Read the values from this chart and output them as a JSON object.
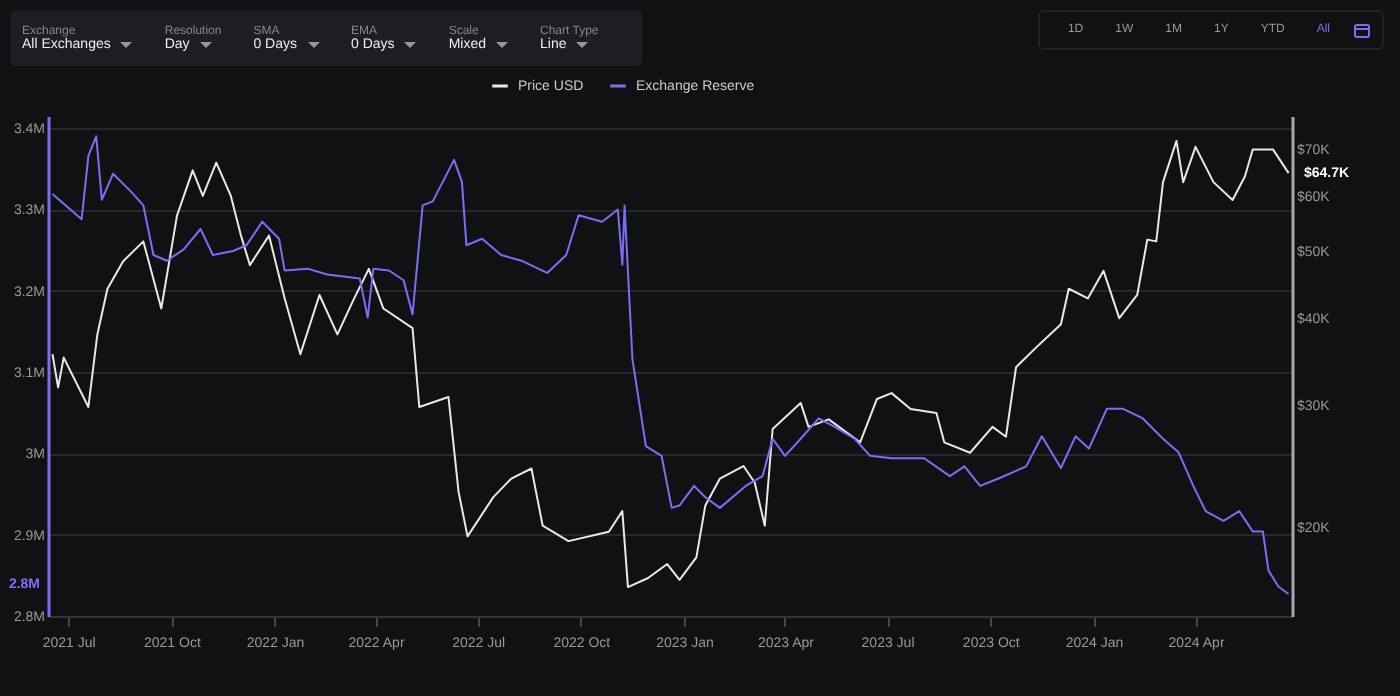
{
  "chart_data": {
    "type": "line",
    "annotations": [
      "Exchange",
      "All Exchanges",
      "Resolution",
      "Day",
      "SMA",
      "0 Days",
      "EMA",
      "0 Days",
      "Scale",
      "Mixed",
      "Chart Type",
      "Line",
      "1D",
      "1W",
      "1M",
      "1Y",
      "YTD",
      "All",
      "$64.7K",
      "2.8M"
    ],
    "series": [
      {
        "name": "Price USD",
        "color": "#e8e8e8",
        "axis": "y2",
        "x": [
          "2021-06-17",
          "2021-06-22",
          "2021-06-27",
          "2021-07-19",
          "2021-07-27",
          "2021-08-05",
          "2021-08-19",
          "2021-09-06",
          "2021-09-22",
          "2021-10-06",
          "2021-10-20",
          "2021-10-29",
          "2021-11-10",
          "2021-11-23",
          "2021-12-02",
          "2021-12-10",
          "2021-12-27",
          "2022-01-10",
          "2022-01-24",
          "2022-02-10",
          "2022-02-26",
          "2022-03-12",
          "2022-03-26",
          "2022-04-08",
          "2022-05-04",
          "2022-05-10",
          "2022-06-05",
          "2022-06-14",
          "2022-06-22",
          "2022-07-15",
          "2022-07-31",
          "2022-08-18",
          "2022-08-28",
          "2022-09-20",
          "2022-10-26",
          "2022-11-07",
          "2022-11-12",
          "2022-11-30",
          "2022-12-17",
          "2022-12-28",
          "2023-01-12",
          "2023-01-20",
          "2023-02-02",
          "2023-02-23",
          "2023-03-05",
          "2023-03-14",
          "2023-03-21",
          "2023-04-15",
          "2023-04-22",
          "2023-05-10",
          "2023-06-07",
          "2023-06-22",
          "2023-07-05",
          "2023-07-22",
          "2023-08-14",
          "2023-08-21",
          "2023-09-13",
          "2023-10-03",
          "2023-10-15",
          "2023-10-24",
          "2023-11-14",
          "2023-12-03",
          "2023-12-10",
          "2023-12-27",
          "2024-01-10",
          "2024-01-24",
          "2024-02-09",
          "2024-02-18",
          "2024-02-26",
          "2024-03-03",
          "2024-03-15",
          "2024-03-21",
          "2024-04-01",
          "2024-04-17",
          "2024-05-04",
          "2024-05-15",
          "2024-05-22",
          "2024-06-09",
          "2024-06-23"
        ],
        "values": [
          35500,
          31800,
          35100,
          29800,
          37900,
          44100,
          48300,
          51600,
          41300,
          56200,
          65300,
          60000,
          67000,
          60000,
          52600,
          47700,
          52600,
          42700,
          35500,
          43200,
          37900,
          42400,
          47100,
          41300,
          38700,
          29800,
          30800,
          22500,
          19400,
          22100,
          23500,
          24300,
          20100,
          19100,
          19700,
          21100,
          16400,
          16900,
          17700,
          16800,
          18100,
          21500,
          23500,
          24500,
          23200,
          20100,
          27700,
          30200,
          27900,
          28600,
          26500,
          30600,
          31200,
          29600,
          29200,
          26500,
          25600,
          27900,
          27000,
          34000,
          36700,
          39200,
          44100,
          42700,
          46800,
          40000,
          43200,
          51900,
          51600,
          62800,
          72000,
          62800,
          70600,
          62800,
          59200,
          64000,
          70000,
          70000,
          64700
        ]
      },
      {
        "name": "Exchange Reserve",
        "color": "#7b6ef6",
        "x": [
          "2021-06-17",
          "2021-07-13",
          "2021-07-19",
          "2021-07-26",
          "2021-07-31",
          "2021-08-10",
          "2021-08-26",
          "2021-09-06",
          "2021-09-15",
          "2021-09-27",
          "2021-10-12",
          "2021-10-27",
          "2021-11-07",
          "2021-11-25",
          "2021-12-07",
          "2021-12-21",
          "2022-01-05",
          "2022-01-10",
          "2022-01-31",
          "2022-02-17",
          "2022-03-18",
          "2022-03-25",
          "2022-03-30",
          "2022-04-13",
          "2022-04-26",
          "2022-05-04",
          "2022-05-13",
          "2022-05-22",
          "2022-06-10",
          "2022-06-17",
          "2022-06-21",
          "2022-07-05",
          "2022-07-22",
          "2022-08-09",
          "2022-09-01",
          "2022-09-18",
          "2022-09-29",
          "2022-10-20",
          "2022-11-03",
          "2022-11-07",
          "2022-11-09",
          "2022-11-16",
          "2022-11-28",
          "2022-12-12",
          "2022-12-21",
          "2022-12-28",
          "2023-01-10",
          "2023-01-20",
          "2023-02-02",
          "2023-02-25",
          "2023-03-12",
          "2023-03-21",
          "2023-04-01",
          "2023-04-15",
          "2023-05-01",
          "2023-05-15",
          "2023-06-02",
          "2023-06-16",
          "2023-07-05",
          "2023-08-03",
          "2023-08-26",
          "2023-09-08",
          "2023-09-22",
          "2023-10-10",
          "2023-11-02",
          "2023-11-16",
          "2023-12-03",
          "2023-12-16",
          "2023-12-28",
          "2024-01-13",
          "2024-01-27",
          "2024-02-14",
          "2024-03-03",
          "2024-03-17",
          "2024-03-30",
          "2024-04-10",
          "2024-04-26",
          "2024-05-10",
          "2024-05-22",
          "2024-05-31",
          "2024-06-05",
          "2024-06-14",
          "2024-06-23"
        ],
        "values": [
          3319000,
          3288000,
          3366000,
          3390000,
          3312000,
          3344000,
          3322000,
          3305000,
          3244000,
          3237000,
          3251000,
          3276000,
          3244000,
          3249000,
          3256000,
          3285000,
          3264000,
          3225000,
          3227000,
          3220000,
          3215000,
          3167000,
          3227000,
          3225000,
          3213000,
          3171000,
          3305000,
          3310000,
          3361000,
          3334000,
          3256000,
          3264000,
          3244000,
          3237000,
          3222000,
          3244000,
          3293000,
          3285000,
          3300000,
          3232000,
          3305000,
          3116000,
          3009000,
          2997000,
          2933000,
          2936000,
          2960000,
          2946000,
          2933000,
          2960000,
          2972000,
          3018000,
          2997000,
          3018000,
          3043000,
          3033000,
          3018000,
          2997000,
          2994000,
          2994000,
          2972000,
          2984000,
          2960000,
          2970000,
          2984000,
          3021000,
          2982000,
          3021000,
          3006000,
          3055000,
          3055000,
          3043000,
          3018000,
          3001000,
          2960000,
          2929000,
          2917000,
          2929000,
          2904000,
          2904000,
          2856000,
          2836000,
          2827000
        ]
      }
    ],
    "xlim": [
      "2021-06-13",
      "2024-06-26"
    ],
    "xticks": [
      {
        "value": "2021-07-01",
        "label": "2021 Jul"
      },
      {
        "value": "2021-10-01",
        "label": "2021 Oct"
      },
      {
        "value": "2022-01-01",
        "label": "2022 Jan"
      },
      {
        "value": "2022-04-01",
        "label": "2022 Apr"
      },
      {
        "value": "2022-07-01",
        "label": "2022 Jul"
      },
      {
        "value": "2022-10-01",
        "label": "2022 Oct"
      },
      {
        "value": "2023-01-01",
        "label": "2023 Jan"
      },
      {
        "value": "2023-04-01",
        "label": "2023 Apr"
      },
      {
        "value": "2023-07-01",
        "label": "2023 Jul"
      },
      {
        "value": "2023-10-01",
        "label": "2023 Oct"
      },
      {
        "value": "2024-01-01",
        "label": "2024 Jan"
      },
      {
        "value": "2024-04-01",
        "label": "2024 Apr"
      }
    ],
    "ylim": [
      2800000,
      3415000
    ],
    "yticks": [
      {
        "value": 2800000,
        "label": "2.8M"
      },
      {
        "value": 2900000,
        "label": "2.9M"
      },
      {
        "value": 3000000,
        "label": "3M"
      },
      {
        "value": 3100000,
        "label": "3.1M"
      },
      {
        "value": 3200000,
        "label": "3.2M"
      },
      {
        "value": 3300000,
        "label": "3.3M"
      },
      {
        "value": 3400000,
        "label": "3.4M"
      }
    ],
    "y2lim": [
      14900,
      78200
    ],
    "y2ticks": [
      {
        "value": 20000,
        "label": "$20K"
      },
      {
        "value": 30000,
        "label": "$30K"
      },
      {
        "value": 40000,
        "label": "$40K"
      },
      {
        "value": 50000,
        "label": "$50K"
      },
      {
        "value": 60000,
        "label": "$60K"
      },
      {
        "value": 70000,
        "label": "$70K"
      }
    ],
    "log": "y2",
    "grid": "y",
    "legend": "top",
    "line_style": "solid",
    "marker": "none"
  }
}
